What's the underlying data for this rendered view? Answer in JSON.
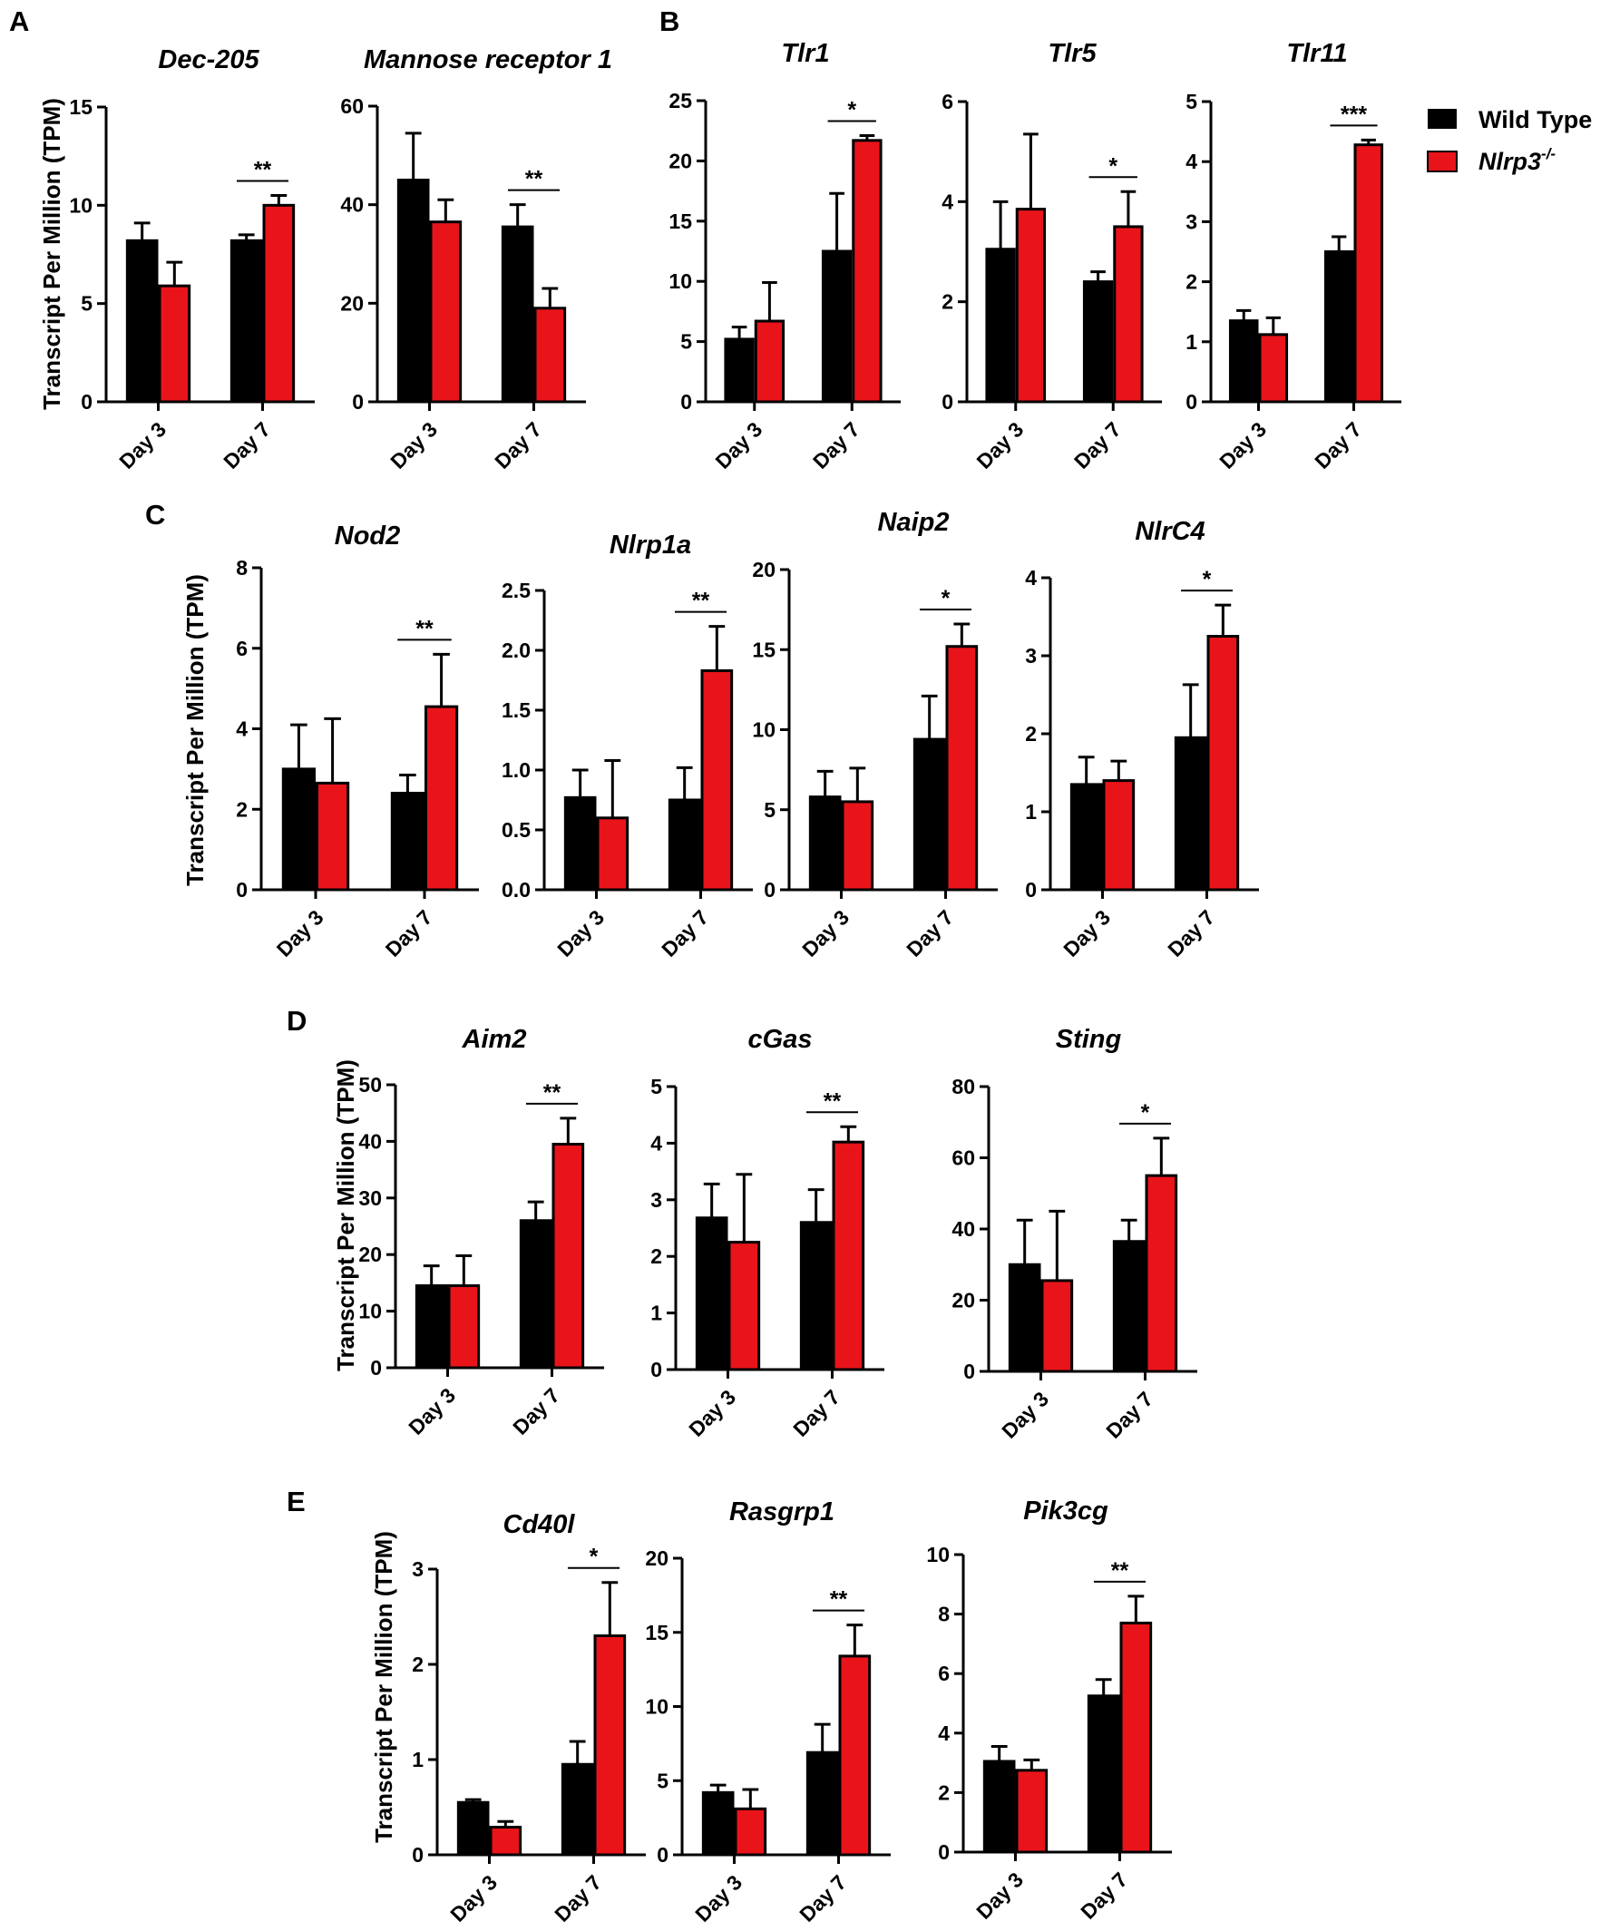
{
  "legend": {
    "wild_type": "Wild Type",
    "knockout_base": "Nlrp3",
    "knockout_sup": "-/-",
    "wild_type_color": "#000000",
    "knockout_color": "#e8141a"
  },
  "ylabel": "Transcript Per Million (TPM)",
  "panel_labels": [
    "A",
    "B",
    "C",
    "D",
    "E"
  ],
  "chart_data": [
    {
      "type": "bar",
      "panel": "A",
      "title": "Dec-205",
      "categories": [
        "Day 3",
        "Day 7"
      ],
      "ylim": [
        0,
        15
      ],
      "yticks": [
        "0",
        "5",
        "10",
        "15"
      ],
      "series": [
        {
          "name": "Wild Type",
          "values": [
            8.2,
            8.2
          ],
          "errors": [
            0.9,
            0.3
          ]
        },
        {
          "name": "Nlrp3-/-",
          "values": [
            5.9,
            10.0
          ],
          "errors": [
            1.2,
            0.5
          ]
        }
      ],
      "significance": [
        {
          "category": "Day 7",
          "label": "**"
        }
      ]
    },
    {
      "type": "bar",
      "panel": "A",
      "title": "Mannose receptor 1",
      "categories": [
        "Day 3",
        "Day 7"
      ],
      "ylim": [
        0,
        60
      ],
      "yticks": [
        "0",
        "20",
        "40",
        "60"
      ],
      "series": [
        {
          "name": "Wild Type",
          "values": [
            45,
            35.5
          ],
          "errors": [
            9.5,
            4.5
          ]
        },
        {
          "name": "Nlrp3-/-",
          "values": [
            36.5,
            19
          ],
          "errors": [
            4.5,
            4
          ]
        }
      ],
      "significance": [
        {
          "category": "Day 7",
          "label": "**"
        }
      ]
    },
    {
      "type": "bar",
      "panel": "B",
      "title": "Tlr1",
      "categories": [
        "Day 3",
        "Day 7"
      ],
      "ylim": [
        0,
        25
      ],
      "yticks": [
        "0",
        "5",
        "10",
        "15",
        "20",
        "25"
      ],
      "series": [
        {
          "name": "Wild Type",
          "values": [
            5.2,
            12.5
          ],
          "errors": [
            1.0,
            4.8
          ]
        },
        {
          "name": "Nlrp3-/-",
          "values": [
            6.7,
            21.7
          ],
          "errors": [
            3.2,
            0.4
          ]
        }
      ],
      "significance": [
        {
          "category": "Day 7",
          "label": "*"
        }
      ]
    },
    {
      "type": "bar",
      "panel": "B",
      "title": "Tlr5",
      "categories": [
        "Day 3",
        "Day 7"
      ],
      "ylim": [
        0,
        6
      ],
      "yticks": [
        "0",
        "2",
        "4",
        "6"
      ],
      "series": [
        {
          "name": "Wild Type",
          "values": [
            3.05,
            2.4
          ],
          "errors": [
            0.95,
            0.2
          ]
        },
        {
          "name": "Nlrp3-/-",
          "values": [
            3.85,
            3.5
          ],
          "errors": [
            1.5,
            0.7
          ]
        }
      ],
      "significance": [
        {
          "category": "Day 7",
          "label": "*"
        }
      ]
    },
    {
      "type": "bar",
      "panel": "B",
      "title": "Tlr11",
      "categories": [
        "Day 3",
        "Day 7"
      ],
      "ylim": [
        0,
        5
      ],
      "yticks": [
        "0",
        "1",
        "2",
        "3",
        "4",
        "5"
      ],
      "series": [
        {
          "name": "Wild Type",
          "values": [
            1.35,
            2.5
          ],
          "errors": [
            0.17,
            0.25
          ]
        },
        {
          "name": "Nlrp3-/-",
          "values": [
            1.12,
            4.28
          ],
          "errors": [
            0.28,
            0.08
          ]
        }
      ],
      "significance": [
        {
          "category": "Day 7",
          "label": "***"
        }
      ]
    },
    {
      "type": "bar",
      "panel": "C",
      "title": "Nod2",
      "categories": [
        "Day 3",
        "Day 7"
      ],
      "ylim": [
        0,
        8
      ],
      "yticks": [
        "0",
        "2",
        "4",
        "6",
        "8"
      ],
      "series": [
        {
          "name": "Wild Type",
          "values": [
            3.0,
            2.4
          ],
          "errors": [
            1.1,
            0.45
          ]
        },
        {
          "name": "Nlrp3-/-",
          "values": [
            2.65,
            4.55
          ],
          "errors": [
            1.6,
            1.3
          ]
        }
      ],
      "significance": [
        {
          "category": "Day 7",
          "label": "**"
        }
      ]
    },
    {
      "type": "bar",
      "panel": "C",
      "title": "Nlrp1a",
      "categories": [
        "Day 3",
        "Day 7"
      ],
      "ylim": [
        0,
        2.5
      ],
      "yticks": [
        "0.0",
        "0.5",
        "1.0",
        "1.5",
        "2.0",
        "2.5"
      ],
      "series": [
        {
          "name": "Wild Type",
          "values": [
            0.77,
            0.75
          ],
          "errors": [
            0.23,
            0.27
          ]
        },
        {
          "name": "Nlrp3-/-",
          "values": [
            0.6,
            1.83
          ],
          "errors": [
            0.48,
            0.37
          ]
        }
      ],
      "significance": [
        {
          "category": "Day 7",
          "label": "**"
        }
      ]
    },
    {
      "type": "bar",
      "panel": "C",
      "title": "Naip2",
      "categories": [
        "Day 3",
        "Day 7"
      ],
      "ylim": [
        0,
        20
      ],
      "yticks": [
        "0",
        "5",
        "10",
        "15",
        "20"
      ],
      "series": [
        {
          "name": "Wild Type",
          "values": [
            5.8,
            9.4
          ],
          "errors": [
            1.6,
            2.7
          ]
        },
        {
          "name": "Nlrp3-/-",
          "values": [
            5.5,
            15.2
          ],
          "errors": [
            2.1,
            1.4
          ]
        }
      ],
      "significance": [
        {
          "category": "Day 7",
          "label": "*"
        }
      ]
    },
    {
      "type": "bar",
      "panel": "C",
      "title": "NlrC4",
      "categories": [
        "Day 3",
        "Day 7"
      ],
      "ylim": [
        0,
        4
      ],
      "yticks": [
        "0",
        "1",
        "2",
        "3",
        "4"
      ],
      "series": [
        {
          "name": "Wild Type",
          "values": [
            1.35,
            1.95
          ],
          "errors": [
            0.35,
            0.68
          ]
        },
        {
          "name": "Nlrp3-/-",
          "values": [
            1.4,
            3.25
          ],
          "errors": [
            0.25,
            0.4
          ]
        }
      ],
      "significance": [
        {
          "category": "Day 7",
          "label": "*"
        }
      ]
    },
    {
      "type": "bar",
      "panel": "D",
      "title": "Aim2",
      "categories": [
        "Day 3",
        "Day 7"
      ],
      "ylim": [
        0,
        50
      ],
      "yticks": [
        "0",
        "10",
        "20",
        "30",
        "40",
        "50"
      ],
      "series": [
        {
          "name": "Wild Type",
          "values": [
            14.5,
            26
          ],
          "errors": [
            3.5,
            3.3
          ]
        },
        {
          "name": "Nlrp3-/-",
          "values": [
            14.5,
            39.5
          ],
          "errors": [
            5.3,
            4.6
          ]
        }
      ],
      "significance": [
        {
          "category": "Day 7",
          "label": "**"
        }
      ]
    },
    {
      "type": "bar",
      "panel": "D",
      "title": "cGas",
      "categories": [
        "Day 3",
        "Day 7"
      ],
      "ylim": [
        0,
        5
      ],
      "yticks": [
        "0",
        "1",
        "2",
        "3",
        "4",
        "5"
      ],
      "series": [
        {
          "name": "Wild Type",
          "values": [
            2.68,
            2.6
          ],
          "errors": [
            0.6,
            0.58
          ]
        },
        {
          "name": "Nlrp3-/-",
          "values": [
            2.25,
            4.02
          ],
          "errors": [
            1.2,
            0.27
          ]
        }
      ],
      "significance": [
        {
          "category": "Day 7",
          "label": "**"
        }
      ]
    },
    {
      "type": "bar",
      "panel": "D",
      "title": "Sting",
      "categories": [
        "Day 3",
        "Day 7"
      ],
      "ylim": [
        0,
        80
      ],
      "yticks": [
        "0",
        "20",
        "40",
        "60",
        "80"
      ],
      "series": [
        {
          "name": "Wild Type",
          "values": [
            30,
            36.5
          ],
          "errors": [
            12.5,
            6
          ]
        },
        {
          "name": "Nlrp3-/-",
          "values": [
            25.5,
            55
          ],
          "errors": [
            19.5,
            10.5
          ]
        }
      ],
      "significance": [
        {
          "category": "Day 7",
          "label": "*"
        }
      ]
    },
    {
      "type": "bar",
      "panel": "E",
      "title": "Cd40l",
      "categories": [
        "Day 3",
        "Day 7"
      ],
      "ylim": [
        0,
        3
      ],
      "yticks": [
        "0",
        "1",
        "2",
        "3"
      ],
      "series": [
        {
          "name": "Wild Type",
          "values": [
            0.55,
            0.95
          ],
          "errors": [
            0.03,
            0.24
          ]
        },
        {
          "name": "Nlrp3-/-",
          "values": [
            0.29,
            2.3
          ],
          "errors": [
            0.06,
            0.56
          ]
        }
      ],
      "significance": [
        {
          "category": "Day 7",
          "label": "*"
        }
      ]
    },
    {
      "type": "bar",
      "panel": "E",
      "title": "Rasgrp1",
      "categories": [
        "Day 3",
        "Day 7"
      ],
      "ylim": [
        0,
        20
      ],
      "yticks": [
        "0",
        "5",
        "10",
        "15",
        "20"
      ],
      "series": [
        {
          "name": "Wild Type",
          "values": [
            4.2,
            6.9
          ],
          "errors": [
            0.5,
            1.9
          ]
        },
        {
          "name": "Nlrp3-/-",
          "values": [
            3.1,
            13.4
          ],
          "errors": [
            1.3,
            2.1
          ]
        }
      ],
      "significance": [
        {
          "category": "Day 7",
          "label": "**"
        }
      ]
    },
    {
      "type": "bar",
      "panel": "E",
      "title": "Pik3cg",
      "categories": [
        "Day 3",
        "Day 7"
      ],
      "ylim": [
        0,
        10
      ],
      "yticks": [
        "0",
        "2",
        "4",
        "6",
        "8",
        "10"
      ],
      "series": [
        {
          "name": "Wild Type",
          "values": [
            3.05,
            5.25
          ],
          "errors": [
            0.5,
            0.55
          ]
        },
        {
          "name": "Nlrp3-/-",
          "values": [
            2.75,
            7.7
          ],
          "errors": [
            0.35,
            0.9
          ]
        }
      ],
      "significance": [
        {
          "category": "Day 7",
          "label": "**"
        }
      ]
    }
  ]
}
